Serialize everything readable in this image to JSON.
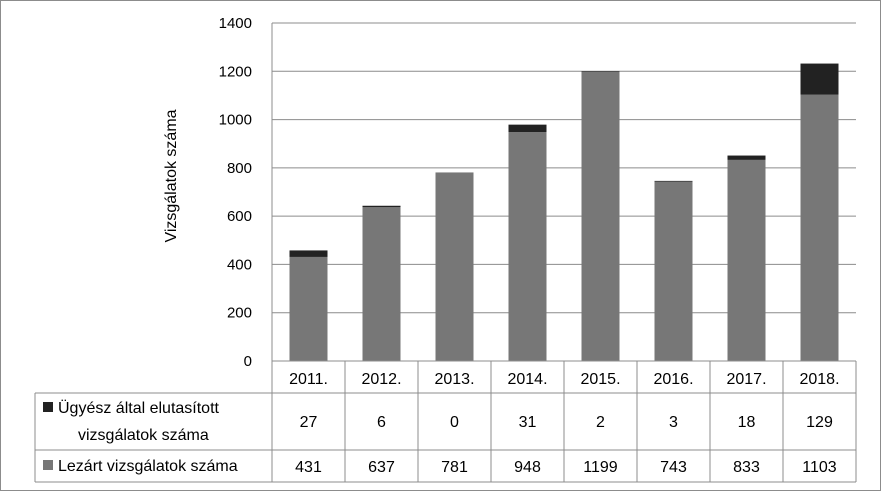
{
  "chart_data": {
    "type": "bar",
    "stacked": true,
    "categories": [
      "2011.",
      "2012.",
      "2013.",
      "2014.",
      "2015.",
      "2016.",
      "2017.",
      "2018."
    ],
    "series": [
      {
        "name": "Lezárt vizsgálatok száma",
        "color": "#777777",
        "values": [
          431,
          637,
          781,
          948,
          1199,
          743,
          833,
          1103
        ]
      },
      {
        "name_lines": [
          "Ügyész által elutasított",
          "vizsgálatok száma"
        ],
        "color": "#222222",
        "values": [
          27,
          6,
          0,
          31,
          2,
          3,
          18,
          129
        ]
      }
    ],
    "ylabel": "Vizsgálatok száma",
    "ylim": [
      0,
      1400
    ],
    "yticks": [
      "0",
      "200",
      "400",
      "600",
      "800",
      "1000",
      "1200",
      "1400"
    ],
    "grid": true,
    "legend": "data table below chart"
  }
}
